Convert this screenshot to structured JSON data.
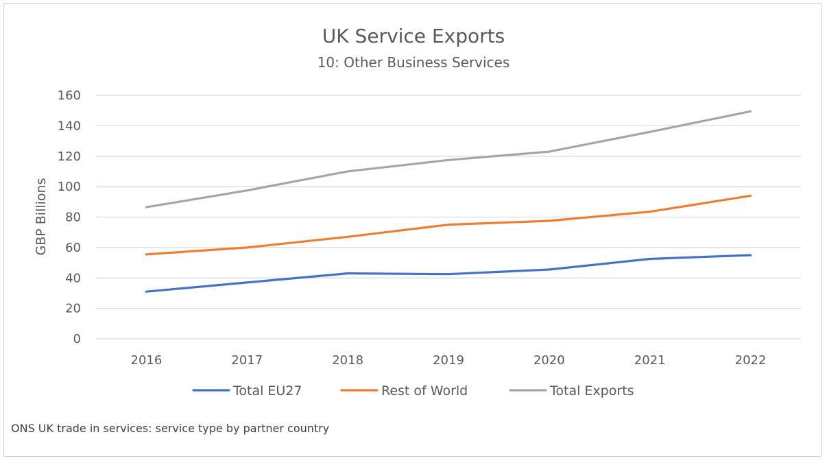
{
  "chart_data": {
    "type": "line",
    "title": "UK Service Exports",
    "subtitle": "10: Other Business Services",
    "xlabel": "",
    "ylabel": "GBP Billions",
    "categories": [
      "2016",
      "2017",
      "2018",
      "2019",
      "2020",
      "2021",
      "2022"
    ],
    "ylim": [
      0,
      160
    ],
    "yticks": [
      0,
      20,
      40,
      60,
      80,
      100,
      120,
      140,
      160
    ],
    "grid": true,
    "legend_position": "bottom",
    "series": [
      {
        "name": "Total EU27",
        "color": "#4472c4",
        "values": [
          31,
          37,
          43,
          42.5,
          45.5,
          52.5,
          55
        ]
      },
      {
        "name": "Rest of World",
        "color": "#ed7d31",
        "values": [
          55.5,
          60,
          67,
          75,
          77.5,
          83.5,
          94
        ]
      },
      {
        "name": "Total Exports",
        "color": "#a5a5a5",
        "values": [
          86.5,
          97.5,
          110,
          117.5,
          123,
          136,
          149.5
        ]
      }
    ],
    "source": "ONS UK trade in services: service type by partner country"
  }
}
